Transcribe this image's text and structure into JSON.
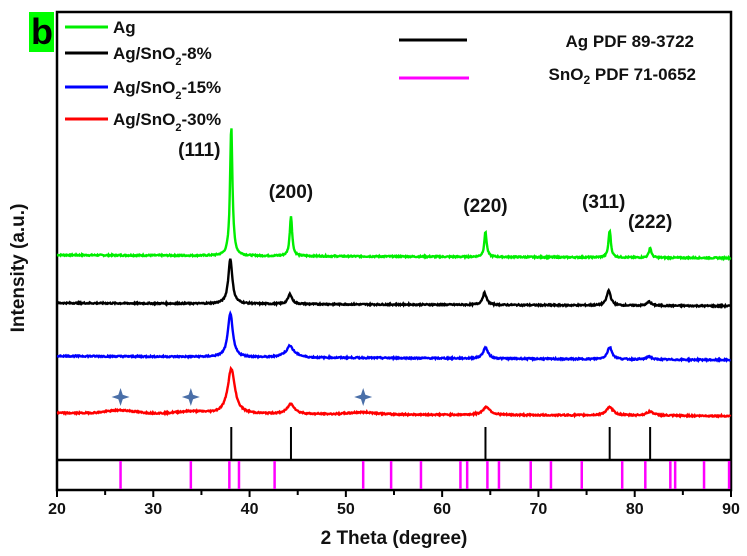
{
  "panel_label": "b",
  "panel_label_bg": "#00ff00",
  "chart_data": {
    "type": "line",
    "xlabel": "2 Theta (degree)",
    "ylabel": "Intensity (a.u.)",
    "xlim": [
      20,
      90
    ],
    "xticks": [
      20,
      30,
      40,
      50,
      60,
      70,
      80,
      90
    ],
    "ylim": [
      0,
      413
    ],
    "grid": false,
    "legend_placement": "top-left",
    "series": [
      {
        "name": "Ag",
        "color": "#00ee00",
        "offset": 170,
        "tilt": -3,
        "width": 0.15,
        "peaks": [
          [
            38.1,
            130
          ],
          [
            44.3,
            40
          ],
          [
            64.5,
            25
          ],
          [
            77.4,
            27
          ],
          [
            81.6,
            10
          ]
        ],
        "humps": []
      },
      {
        "name": "Ag/SnO2-8%",
        "color": "#000000",
        "offset": 122,
        "tilt": -3,
        "width": 0.25,
        "peaks": [
          [
            38.0,
            45
          ],
          [
            44.2,
            10
          ],
          [
            64.4,
            12
          ],
          [
            77.3,
            15
          ],
          [
            81.5,
            4
          ]
        ],
        "humps": []
      },
      {
        "name": "Ag/SnO2-15%",
        "color": "#0000ff",
        "offset": 69,
        "tilt": -4,
        "width": 0.3,
        "peaks": [
          [
            38.0,
            44
          ],
          [
            44.2,
            8
          ],
          [
            64.5,
            11
          ],
          [
            77.4,
            12
          ],
          [
            81.5,
            3
          ]
        ],
        "humps": [
          [
            44.2,
            4,
            1.2
          ]
        ]
      },
      {
        "name": "Ag/SnO2-30%",
        "color": "#ff0000",
        "offset": 12,
        "tilt": -3,
        "width": 0.45,
        "peaks": [
          [
            38.1,
            45
          ],
          [
            44.3,
            10
          ],
          [
            64.6,
            8
          ],
          [
            77.4,
            8
          ],
          [
            81.6,
            4
          ]
        ],
        "humps": [
          [
            26.6,
            3,
            2
          ],
          [
            33.9,
            2,
            2
          ],
          [
            51.8,
            2,
            2
          ]
        ]
      }
    ],
    "annotations": [
      {
        "text": "(111)",
        "x": 38.1
      },
      {
        "text": "(200)",
        "x": 44.3
      },
      {
        "text": "(220)",
        "x": 64.5
      },
      {
        "text": "(311)",
        "x": 77.4
      },
      {
        "text": "(222)",
        "x": 81.6
      }
    ],
    "star_markers": {
      "color": "#4a6fa8",
      "x": [
        26.6,
        33.9,
        51.8
      ]
    },
    "references": [
      {
        "name": "Ag PDF 89-3722",
        "color": "#000000",
        "positions": [
          38.1,
          44.3,
          64.5,
          77.4,
          81.6
        ]
      },
      {
        "name": "SnO2 PDF 71-0652",
        "color": "#ff00ff",
        "positions": [
          26.6,
          33.9,
          37.9,
          38.9,
          42.6,
          51.8,
          54.7,
          57.8,
          61.9,
          62.6,
          64.7,
          65.9,
          69.2,
          71.3,
          74.5,
          78.7,
          81.1,
          83.7,
          84.2,
          87.2,
          89.8
        ]
      }
    ]
  },
  "legend": {
    "items": [
      {
        "base": "Ag",
        "sub": "",
        "tail": ""
      },
      {
        "base": "Ag/SnO",
        "sub": "2",
        "tail": "-8%"
      },
      {
        "base": "Ag/SnO",
        "sub": "2",
        "tail": "-15%"
      },
      {
        "base": "Ag/SnO",
        "sub": "2",
        "tail": "-30%"
      }
    ],
    "refs": [
      {
        "base": "Ag PDF 89-3722",
        "sub": "",
        "tail": ""
      },
      {
        "base": "SnO",
        "sub": "2",
        "tail": " PDF 71-0652"
      }
    ]
  }
}
